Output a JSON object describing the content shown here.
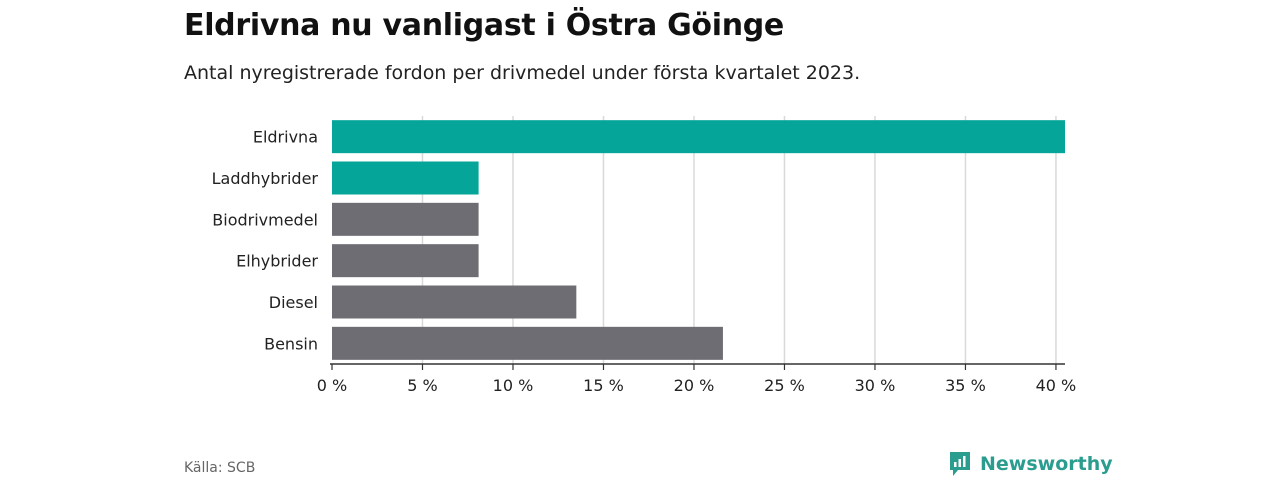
{
  "title": "Eldrivna nu vanligast i Östra Göinge",
  "subtitle": "Antal nyregistrerade fordon per drivmedel under första kvartalet 2023.",
  "source": "Källa: SCB",
  "brand": {
    "name": "Newsworthy",
    "icon": "newsworthy-logo-icon"
  },
  "colors": {
    "highlight": "#06a59a",
    "default": "#6e6d73",
    "grid": "#d9d9d9"
  },
  "chart_data": {
    "type": "bar",
    "orientation": "horizontal",
    "categories": [
      "Eldrivna",
      "Laddhybrider",
      "Biodrivmedel",
      "Elhybrider",
      "Diesel",
      "Bensin"
    ],
    "values": [
      40.5,
      8.1,
      8.1,
      8.1,
      13.5,
      21.6
    ],
    "highlighted": [
      true,
      true,
      false,
      false,
      false,
      false
    ],
    "xlim": [
      0,
      40.5
    ],
    "ticks": [
      0,
      5,
      10,
      15,
      20,
      25,
      30,
      35,
      40
    ],
    "tick_labels": [
      "0 %",
      "5 %",
      "10 %",
      "15 %",
      "20 %",
      "25 %",
      "30 %",
      "35 %",
      "40 %"
    ],
    "grid": true
  }
}
